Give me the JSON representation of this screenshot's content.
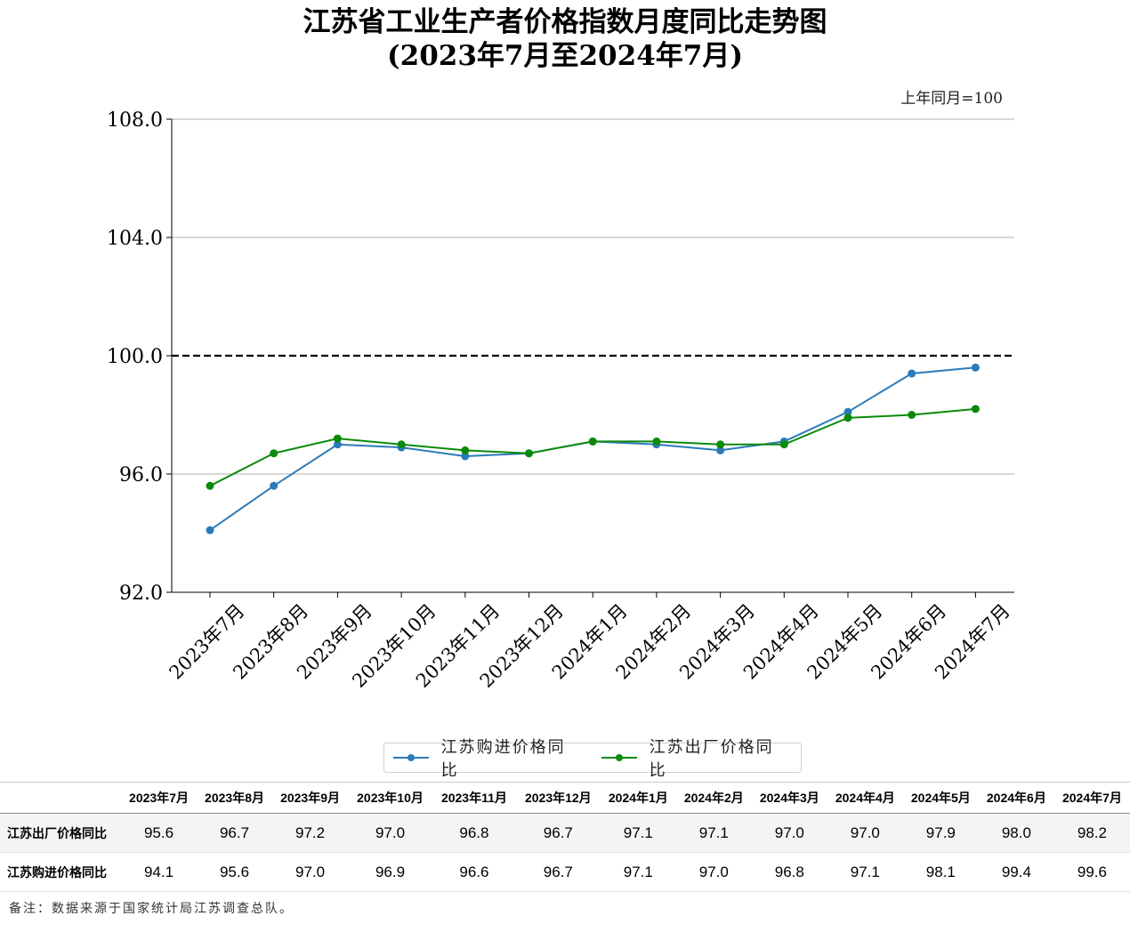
{
  "chart_data": {
    "type": "line",
    "title": "江苏省工业生产者价格指数月度同比走势图",
    "subtitle": "(2023年7月至2024年7月)",
    "annotation": "上年同月=100",
    "categories": [
      "2023年7月",
      "2023年8月",
      "2023年9月",
      "2023年10月",
      "2023年11月",
      "2023年12月",
      "2024年1月",
      "2024年2月",
      "2024年3月",
      "2024年4月",
      "2024年5月",
      "2024年6月",
      "2024年7月"
    ],
    "ylim": [
      92.0,
      108.0
    ],
    "yticks": [
      92.0,
      96.0,
      100.0,
      104.0,
      108.0
    ],
    "ytick_labels": [
      "92.0",
      "96.0",
      "100.0",
      "104.0",
      "108.0"
    ],
    "reference_line": 100.0,
    "grid": true,
    "legend_position": "bottom-center",
    "series": [
      {
        "name": "江苏购进价格同比",
        "color": "#2b7bb9",
        "values": [
          94.1,
          95.6,
          97.0,
          96.9,
          96.6,
          96.7,
          97.1,
          97.0,
          96.8,
          97.1,
          98.1,
          99.4,
          99.6
        ]
      },
      {
        "name": "江苏出厂价格同比",
        "color": "#0a8a0a",
        "values": [
          95.6,
          96.7,
          97.2,
          97.0,
          96.8,
          96.7,
          97.1,
          97.1,
          97.0,
          97.0,
          97.9,
          98.0,
          98.2
        ]
      }
    ]
  },
  "table": {
    "headers": [
      "2023年7月",
      "2023年8月",
      "2023年9月",
      "2023年10月",
      "2023年11月",
      "2023年12月",
      "2024年1月",
      "2024年2月",
      "2024年3月",
      "2024年4月",
      "2024年5月",
      "2024年6月",
      "2024年7月"
    ],
    "rows": [
      {
        "label": "江苏出厂价格同比",
        "values": [
          "95.6",
          "96.7",
          "97.2",
          "97.0",
          "96.8",
          "96.7",
          "97.1",
          "97.1",
          "97.0",
          "97.0",
          "97.9",
          "98.0",
          "98.2"
        ]
      },
      {
        "label": "江苏购进价格同比",
        "values": [
          "94.1",
          "95.6",
          "97.0",
          "96.9",
          "96.6",
          "96.7",
          "97.1",
          "97.0",
          "96.8",
          "97.1",
          "98.1",
          "99.4",
          "99.6"
        ]
      }
    ]
  },
  "note": "备注：数据来源于国家统计局江苏调查总队。"
}
